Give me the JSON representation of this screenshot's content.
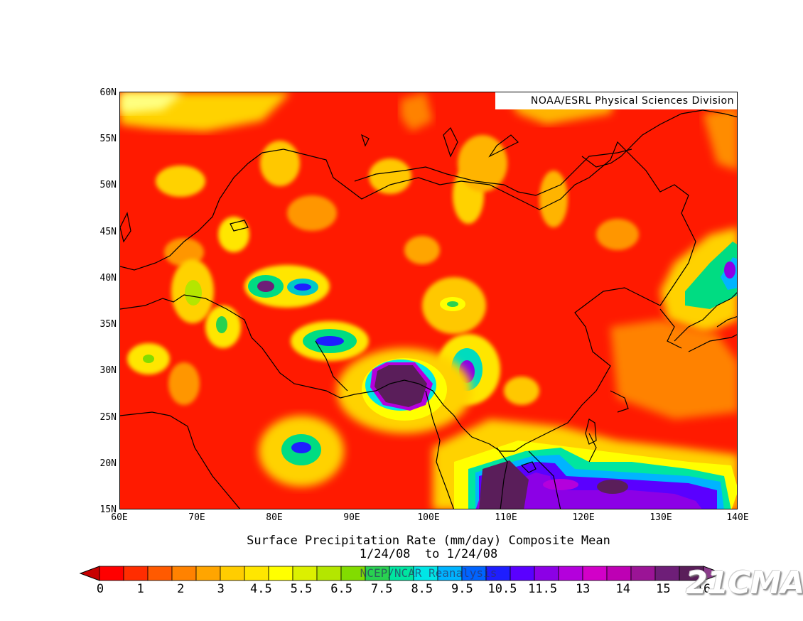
{
  "map": {
    "credit": "NOAA/ESRL Physical Sciences Division",
    "title_line1": "Surface Precipitation Rate (mm/day) Composite Mean",
    "title_line2": "1/24/08  to 1/24/08",
    "source_label": "NCEP/NCAR Reanalysis",
    "watermark": "21CMA",
    "lat_ticks": [
      "60N",
      "55N",
      "50N",
      "45N",
      "40N",
      "35N",
      "30N",
      "25N",
      "20N",
      "15N"
    ],
    "lon_ticks": [
      "60E",
      "70E",
      "80E",
      "90E",
      "100E",
      "110E",
      "120E",
      "130E",
      "140E"
    ],
    "lat_range": [
      15,
      60
    ],
    "lon_range": [
      60,
      140
    ],
    "background_rate_class": "0-1 mm/day (red)"
  },
  "colorbar": {
    "labels": [
      "0",
      "1",
      "2",
      "3",
      "4.5",
      "5.5",
      "6.5",
      "7.5",
      "8.5",
      "9.5",
      "10.5",
      "11.5",
      "13",
      "14",
      "15",
      "16"
    ],
    "colors": [
      "#ff0000",
      "#ff2d00",
      "#ff5a00",
      "#ff8200",
      "#ffa500",
      "#ffcd00",
      "#ffe600",
      "#ffff00",
      "#dcf000",
      "#b4e600",
      "#82dc00",
      "#28d250",
      "#00e6a0",
      "#00e6e6",
      "#00b4ff",
      "#0064ff",
      "#1e1eff",
      "#5a00ff",
      "#8c00e6",
      "#b400dc",
      "#d200c8",
      "#be00b4",
      "#9b1496",
      "#6e1e78",
      "#5a1e5a"
    ],
    "under_color": "#c80000",
    "over_color": "#8c3c8c"
  }
}
